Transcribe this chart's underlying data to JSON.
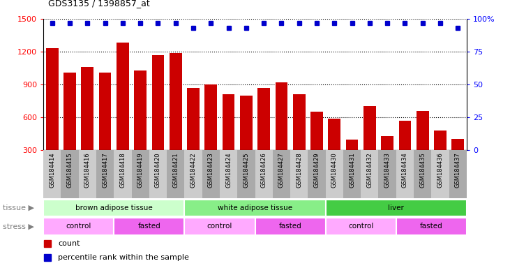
{
  "title": "GDS3135 / 1398857_at",
  "samples": [
    "GSM184414",
    "GSM184415",
    "GSM184416",
    "GSM184417",
    "GSM184418",
    "GSM184419",
    "GSM184420",
    "GSM184421",
    "GSM184422",
    "GSM184423",
    "GSM184424",
    "GSM184425",
    "GSM184426",
    "GSM184427",
    "GSM184428",
    "GSM184429",
    "GSM184430",
    "GSM184431",
    "GSM184432",
    "GSM184433",
    "GSM184434",
    "GSM184435",
    "GSM184436",
    "GSM184437"
  ],
  "counts": [
    1230,
    1010,
    1060,
    1005,
    1285,
    1030,
    1165,
    1185,
    870,
    900,
    810,
    800,
    870,
    920,
    810,
    650,
    590,
    395,
    700,
    430,
    570,
    655,
    480,
    400
  ],
  "percentile": [
    97,
    97,
    97,
    97,
    97,
    97,
    97,
    97,
    93,
    97,
    93,
    93,
    97,
    97,
    97,
    97,
    97,
    97,
    97,
    97,
    97,
    97,
    97,
    93
  ],
  "bar_color": "#cc0000",
  "dot_color": "#0000cc",
  "ylim_left": [
    300,
    1500
  ],
  "ylim_right": [
    0,
    100
  ],
  "yticks_left": [
    300,
    600,
    900,
    1200,
    1500
  ],
  "yticks_right": [
    0,
    25,
    50,
    75,
    100
  ],
  "tissue_groups": [
    {
      "label": "brown adipose tissue",
      "start": 0,
      "end": 8,
      "color": "#ccffcc"
    },
    {
      "label": "white adipose tissue",
      "start": 8,
      "end": 16,
      "color": "#88ee88"
    },
    {
      "label": "liver",
      "start": 16,
      "end": 24,
      "color": "#44cc44"
    }
  ],
  "stress_groups": [
    {
      "label": "control",
      "start": 0,
      "end": 4,
      "color": "#ffaaff"
    },
    {
      "label": "fasted",
      "start": 4,
      "end": 8,
      "color": "#ee66ee"
    },
    {
      "label": "control",
      "start": 8,
      "end": 12,
      "color": "#ffaaff"
    },
    {
      "label": "fasted",
      "start": 12,
      "end": 16,
      "color": "#ee66ee"
    },
    {
      "label": "control",
      "start": 16,
      "end": 20,
      "color": "#ffaaff"
    },
    {
      "label": "fasted",
      "start": 20,
      "end": 24,
      "color": "#ee66ee"
    }
  ],
  "legend_count_label": "count",
  "legend_pct_label": "percentile rank within the sample",
  "tissue_label": "tissue",
  "stress_label": "stress",
  "tick_bg_even": "#cccccc",
  "tick_bg_odd": "#aaaaaa"
}
